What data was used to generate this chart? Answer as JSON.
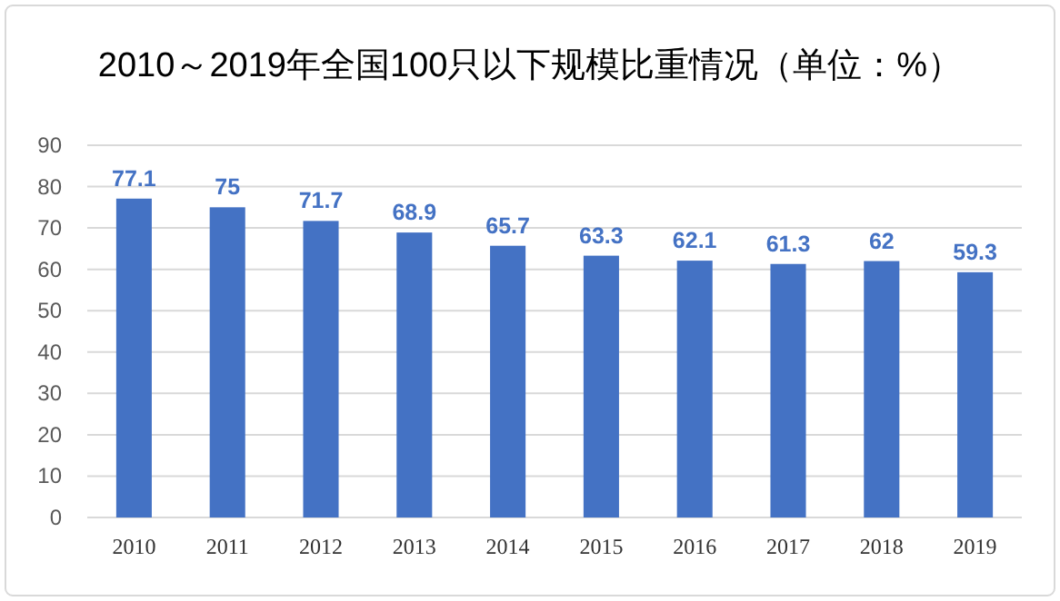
{
  "chart_data": {
    "type": "bar",
    "title": "2010～2019年全国100只以下规模比重情况（单位：%）",
    "categories": [
      "2010",
      "2011",
      "2012",
      "2013",
      "2014",
      "2015",
      "2016",
      "2017",
      "2018",
      "2019"
    ],
    "values": [
      77.1,
      75,
      71.7,
      68.9,
      65.7,
      63.3,
      62.1,
      61.3,
      62,
      59.3
    ],
    "color": "#4472c4",
    "ylim": [
      0,
      90
    ],
    "yticks": [
      0,
      10,
      20,
      30,
      40,
      50,
      60,
      70,
      80,
      90
    ],
    "grid": "y",
    "data_labels": true
  }
}
